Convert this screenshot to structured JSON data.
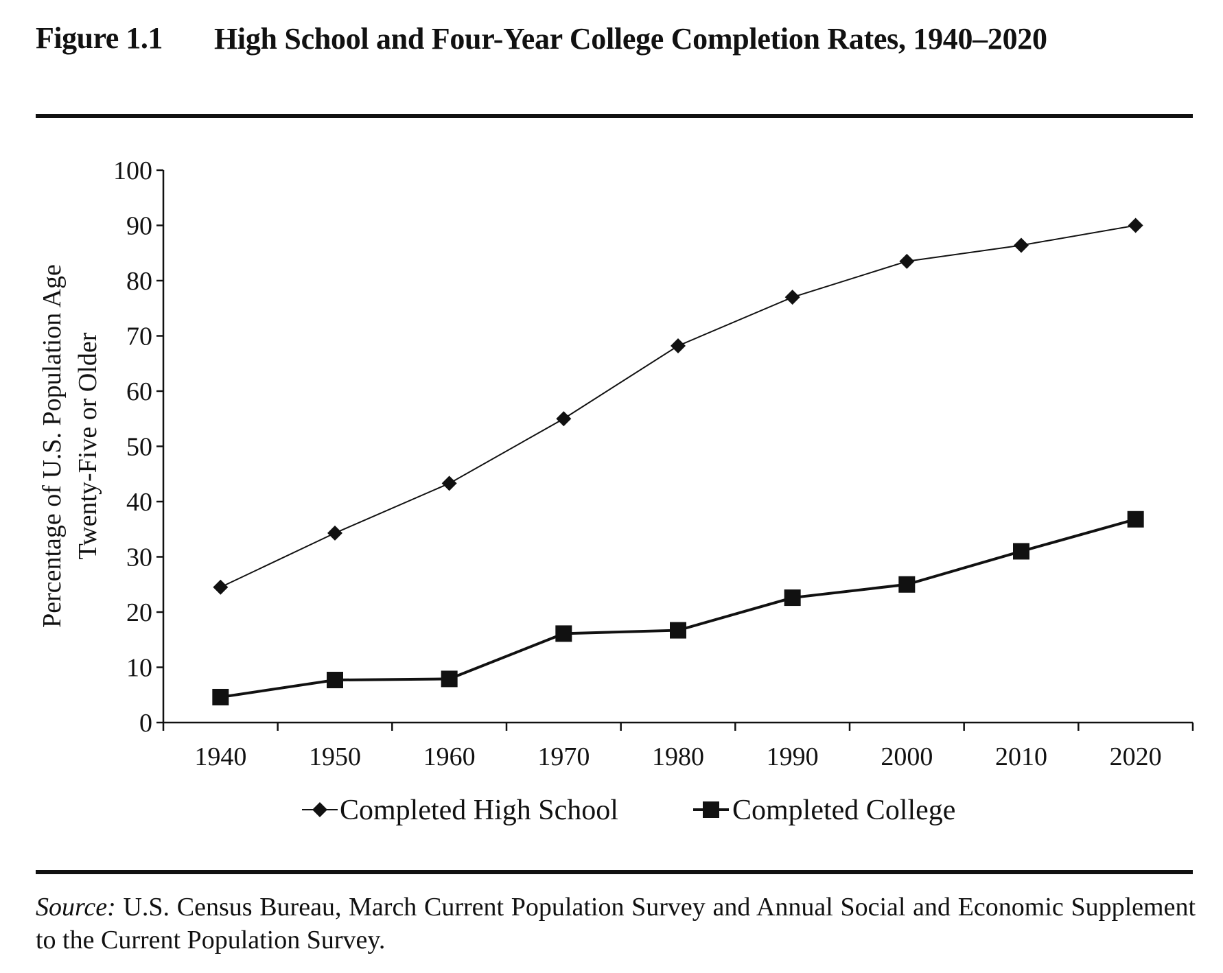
{
  "figure": {
    "label": "Figure 1.1",
    "title": "High School and Four-Year College Completion Rates, 1940–2020"
  },
  "chart_data": {
    "type": "line",
    "x": [
      1940,
      1950,
      1960,
      1970,
      1980,
      1990,
      2000,
      2010,
      2020
    ],
    "x_tick_labels": [
      "1940",
      "1950",
      "1960",
      "1970",
      "1980",
      "1990",
      "2000",
      "2010",
      "2020"
    ],
    "y_tick_labels": [
      "0",
      "10",
      "20",
      "30",
      "40",
      "50",
      "60",
      "70",
      "80",
      "90",
      "100"
    ],
    "ylabel_line1": "Percentage of U.S. Population Age",
    "ylabel_line2": "Twenty-Five or Older",
    "ylim": [
      0,
      100
    ],
    "grid": false,
    "legend_position": "bottom",
    "series": [
      {
        "name": "Completed High School",
        "marker": "diamond",
        "color": "#111111",
        "values": [
          24.5,
          34.3,
          43.3,
          55.0,
          68.2,
          77.0,
          83.5,
          86.4,
          90.0
        ]
      },
      {
        "name": "Completed College",
        "marker": "square",
        "color": "#111111",
        "values": [
          4.6,
          7.7,
          7.9,
          16.1,
          16.7,
          22.6,
          25.0,
          31.0,
          36.8
        ]
      }
    ]
  },
  "source": {
    "label": "Source:",
    "text": "U.S. Census Bureau, March Current Population Survey and Annual Social and Economic Supplement to the Current Population Survey."
  }
}
